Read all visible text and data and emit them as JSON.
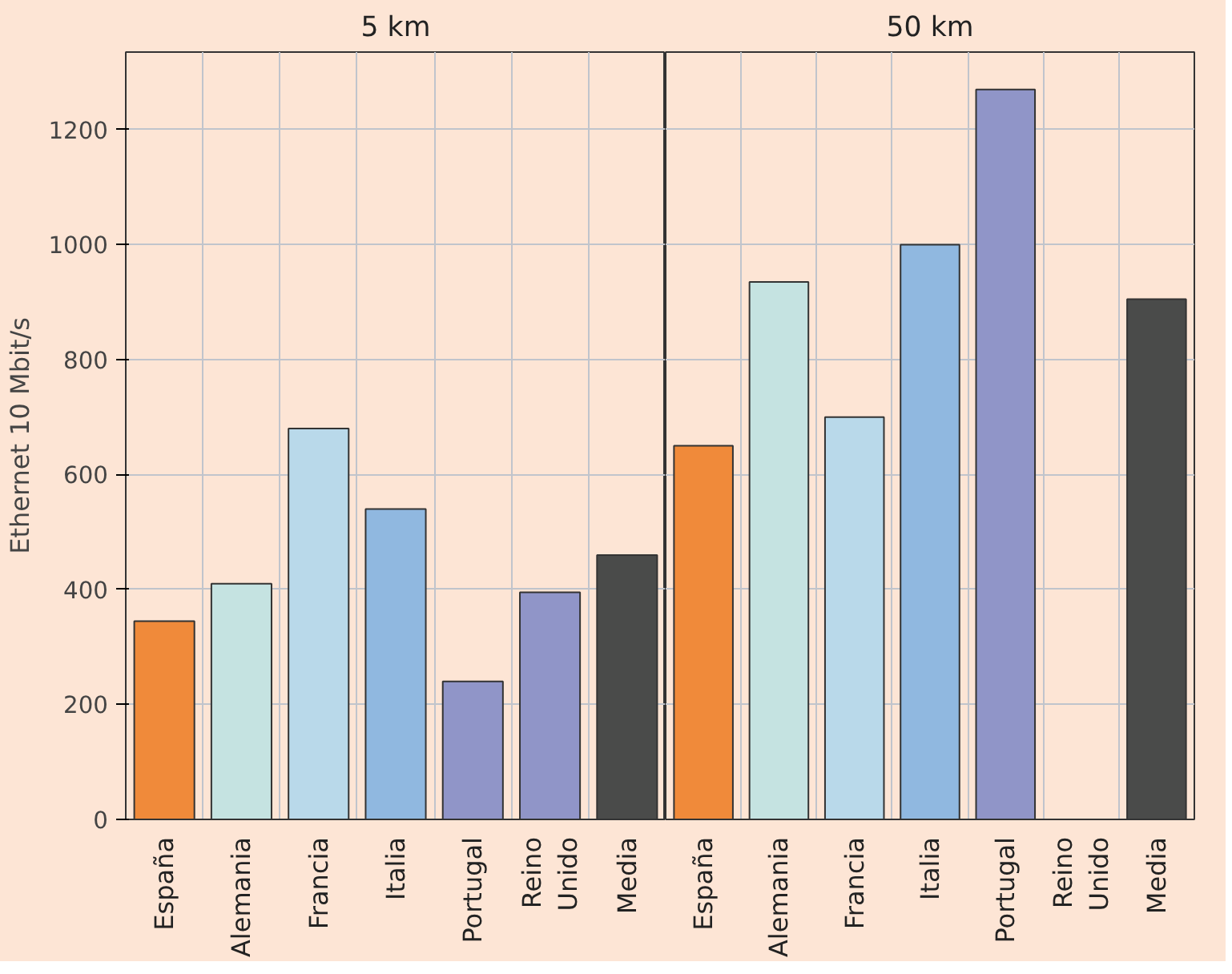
{
  "chart_data": [
    {
      "type": "bar",
      "title": "5 km",
      "ylabel": "Ethernet 10 Mbit/s",
      "categories": [
        "España",
        "Alemania",
        "Francia",
        "Italia",
        "Portugal",
        "Reino Unido",
        "Media"
      ],
      "values": [
        345,
        410,
        680,
        540,
        240,
        395,
        460
      ],
      "colors": [
        "#f08a3a",
        "#c5e3e1",
        "#b9d9ea",
        "#90b8e0",
        "#9095c8",
        "#9095c8",
        "#4a4b4a"
      ],
      "ylim": [
        0,
        1335
      ],
      "yticks": [
        0,
        200,
        400,
        600,
        800,
        1000,
        1200
      ],
      "grid": true
    },
    {
      "type": "bar",
      "title": "50 km",
      "categories": [
        "España",
        "Alemania",
        "Francia",
        "Italia",
        "Portugal",
        "Reino Unido",
        "Media"
      ],
      "values": [
        650,
        935,
        700,
        1000,
        1270,
        null,
        905
      ],
      "colors": [
        "#f08a3a",
        "#c5e3e1",
        "#b9d9ea",
        "#90b8e0",
        "#9095c8",
        "#9095c8",
        "#4a4b4a"
      ],
      "ylim": [
        0,
        1335
      ],
      "yticks": [
        0,
        200,
        400,
        600,
        800,
        1000,
        1200
      ],
      "grid": true,
      "tick_labels": "x"
    }
  ]
}
